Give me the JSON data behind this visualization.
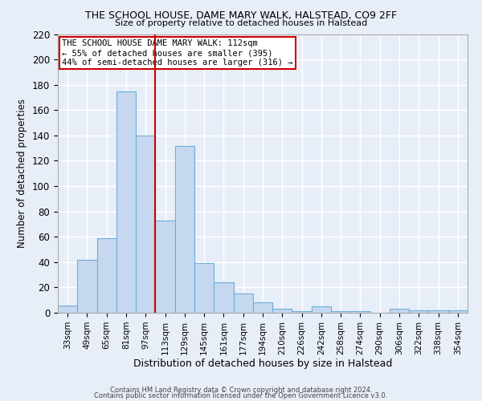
{
  "title1": "THE SCHOOL HOUSE, DAME MARY WALK, HALSTEAD, CO9 2FF",
  "title2": "Size of property relative to detached houses in Halstead",
  "xlabel": "Distribution of detached houses by size in Halstead",
  "ylabel": "Number of detached properties",
  "bin_labels": [
    "33sqm",
    "49sqm",
    "65sqm",
    "81sqm",
    "97sqm",
    "113sqm",
    "129sqm",
    "145sqm",
    "161sqm",
    "177sqm",
    "194sqm",
    "210sqm",
    "226sqm",
    "242sqm",
    "258sqm",
    "274sqm",
    "290sqm",
    "306sqm",
    "322sqm",
    "338sqm",
    "354sqm"
  ],
  "bar_heights": [
    6,
    42,
    59,
    175,
    140,
    73,
    132,
    39,
    24,
    15,
    8,
    3,
    1,
    5,
    1,
    1,
    0,
    3,
    2,
    2,
    2
  ],
  "bar_color": "#c5d8f0",
  "bar_edge_color": "#6aaed6",
  "vline_x_index": 5,
  "vline_color": "#cc0000",
  "annotation_text": "THE SCHOOL HOUSE DAME MARY WALK: 112sqm\n← 55% of detached houses are smaller (395)\n44% of semi-detached houses are larger (316) →",
  "annotation_box_color": "#ffffff",
  "annotation_box_edge": "#cc0000",
  "ylim": [
    0,
    220
  ],
  "yticks": [
    0,
    20,
    40,
    60,
    80,
    100,
    120,
    140,
    160,
    180,
    200,
    220
  ],
  "footer1": "Contains HM Land Registry data © Crown copyright and database right 2024.",
  "footer2": "Contains public sector information licensed under the Open Government Licence v3.0.",
  "bg_color": "#e8eef8",
  "plot_bg_color": "#e8eef8",
  "grid_color": "#ffffff"
}
